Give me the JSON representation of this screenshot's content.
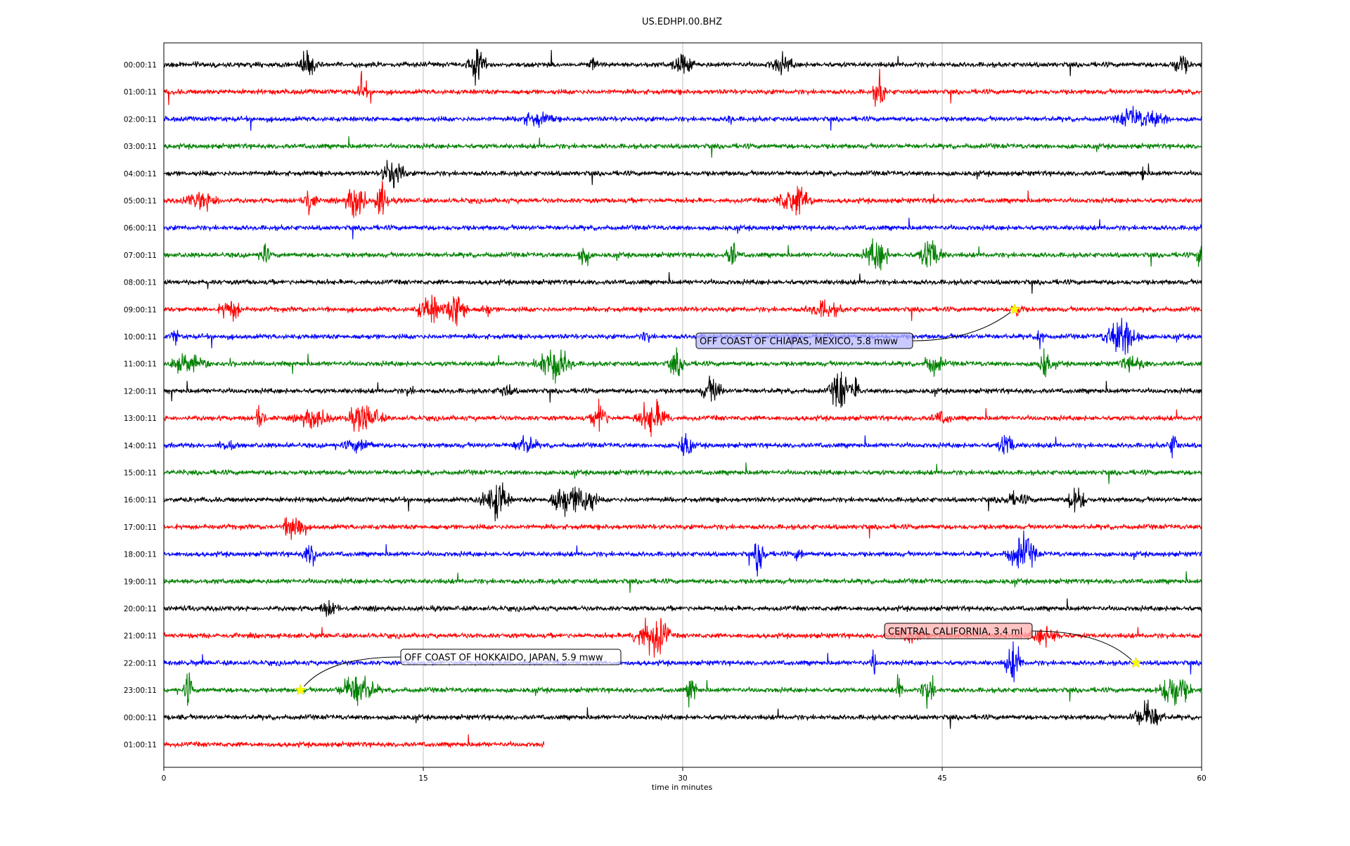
{
  "chart_data": {
    "type": "line",
    "title": "US.EDHPI.00.BHZ",
    "xlabel": "time in minutes",
    "ylabel": "",
    "xlim": [
      0,
      60
    ],
    "xticks": [
      0,
      15,
      30,
      45,
      60
    ],
    "grid": "vertical",
    "trace_colors": [
      "#000000",
      "#ff0000",
      "#0000ff",
      "#008000"
    ],
    "rows": [
      {
        "label": "00:00:11",
        "color": "#000000",
        "end_minute": 60
      },
      {
        "label": "01:00:11",
        "color": "#ff0000",
        "end_minute": 60
      },
      {
        "label": "02:00:11",
        "color": "#0000ff",
        "end_minute": 60
      },
      {
        "label": "03:00:11",
        "color": "#008000",
        "end_minute": 60
      },
      {
        "label": "04:00:11",
        "color": "#000000",
        "end_minute": 60
      },
      {
        "label": "05:00:11",
        "color": "#ff0000",
        "end_minute": 60
      },
      {
        "label": "06:00:11",
        "color": "#0000ff",
        "end_minute": 60
      },
      {
        "label": "07:00:11",
        "color": "#008000",
        "end_minute": 60
      },
      {
        "label": "08:00:11",
        "color": "#000000",
        "end_minute": 60
      },
      {
        "label": "09:00:11",
        "color": "#ff0000",
        "end_minute": 60
      },
      {
        "label": "10:00:11",
        "color": "#0000ff",
        "end_minute": 60
      },
      {
        "label": "11:00:11",
        "color": "#008000",
        "end_minute": 60
      },
      {
        "label": "12:00:11",
        "color": "#000000",
        "end_minute": 60
      },
      {
        "label": "13:00:11",
        "color": "#ff0000",
        "end_minute": 60
      },
      {
        "label": "14:00:11",
        "color": "#0000ff",
        "end_minute": 60
      },
      {
        "label": "15:00:11",
        "color": "#008000",
        "end_minute": 60
      },
      {
        "label": "16:00:11",
        "color": "#000000",
        "end_minute": 60
      },
      {
        "label": "17:00:11",
        "color": "#ff0000",
        "end_minute": 60
      },
      {
        "label": "18:00:11",
        "color": "#0000ff",
        "end_minute": 60
      },
      {
        "label": "19:00:11",
        "color": "#008000",
        "end_minute": 60
      },
      {
        "label": "20:00:11",
        "color": "#000000",
        "end_minute": 60
      },
      {
        "label": "21:00:11",
        "color": "#ff0000",
        "end_minute": 60
      },
      {
        "label": "22:00:11",
        "color": "#0000ff",
        "end_minute": 60
      },
      {
        "label": "23:00:11",
        "color": "#008000",
        "end_minute": 60
      },
      {
        "label": "00:00:11",
        "color": "#000000",
        "end_minute": 60
      },
      {
        "label": "01:00:11",
        "color": "#ff0000",
        "end_minute": 22
      }
    ],
    "events": [
      {
        "label": "OFF COAST OF CHIAPAS, MEXICO, 5.8 mww",
        "row_index": 9,
        "minute": 49.2,
        "marker": "star",
        "marker_color": "#ffff00"
      },
      {
        "label": "OFF COAST OF HOKKAIDO, JAPAN, 5.9 mww",
        "row_index": 23,
        "minute": 7.9,
        "marker": "star",
        "marker_color": "#ffff00"
      },
      {
        "label": "CENTRAL CALIFORNIA, 3.4 ml",
        "row_index": 22,
        "minute": 56.2,
        "marker": "star",
        "marker_color": "#ffff00"
      }
    ]
  }
}
